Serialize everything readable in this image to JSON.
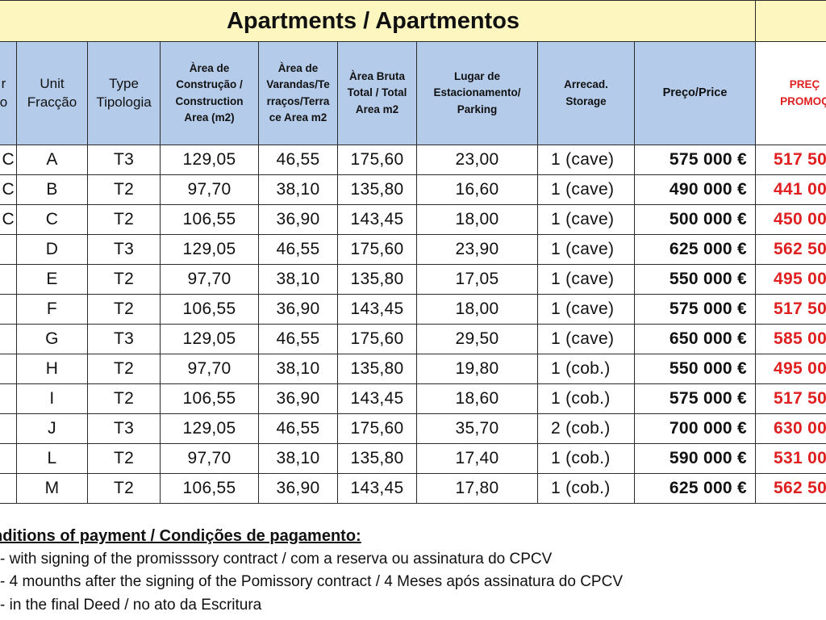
{
  "title": "Apartments / Apartmentos",
  "headers": {
    "col0": "r\no",
    "unit": "Unit\nFracção",
    "type": "Type\nTipologia",
    "construction_area": "Àrea de\nConstrução /\nConstruction\nArea (m2)",
    "balcony_area": "Àrea de\nVarandas/Te\nrraços/Terra\nce Area m2",
    "gross_area": "Àrea Bruta\nTotal / Total\nArea m2",
    "parking": "Lugar de\nEstacionamento/\nParking",
    "storage": "Arrecad.\nStorage",
    "price": "Preço/Price",
    "promo_price": "PREÇ\nPROMOÇ"
  },
  "rows": [
    {
      "col0": "C",
      "unit": "A",
      "type": "T3",
      "construction_area": "129,05",
      "balcony_area": "46,55",
      "gross_area": "175,60",
      "parking": "23,00",
      "storage": "1 (cave)",
      "price": "575 000 €",
      "promo_price": "517 50"
    },
    {
      "col0": "C",
      "unit": "B",
      "type": "T2",
      "construction_area": "97,70",
      "balcony_area": "38,10",
      "gross_area": "135,80",
      "parking": "16,60",
      "storage": "1 (cave)",
      "price": "490 000 €",
      "promo_price": "441 00"
    },
    {
      "col0": "C",
      "unit": "C",
      "type": "T2",
      "construction_area": "106,55",
      "balcony_area": "36,90",
      "gross_area": "143,45",
      "parking": "18,00",
      "storage": "1 (cave)",
      "price": "500 000 €",
      "promo_price": "450 00"
    },
    {
      "col0": "",
      "unit": "D",
      "type": "T3",
      "construction_area": "129,05",
      "balcony_area": "46,55",
      "gross_area": "175,60",
      "parking": "23,90",
      "storage": "1 (cave)",
      "price": "625 000 €",
      "promo_price": "562 50"
    },
    {
      "col0": "",
      "unit": "E",
      "type": "T2",
      "construction_area": "97,70",
      "balcony_area": "38,10",
      "gross_area": "135,80",
      "parking": "17,05",
      "storage": "1 (cave)",
      "price": "550 000 €",
      "promo_price": "495 00"
    },
    {
      "col0": "",
      "unit": "F",
      "type": "T2",
      "construction_area": "106,55",
      "balcony_area": "36,90",
      "gross_area": "143,45",
      "parking": "18,00",
      "storage": "1 (cave)",
      "price": "575 000 €",
      "promo_price": "517 50"
    },
    {
      "col0": "",
      "unit": "G",
      "type": "T3",
      "construction_area": "129,05",
      "balcony_area": "46,55",
      "gross_area": "175,60",
      "parking": "29,50",
      "storage": "1 (cave)",
      "price": "650 000 €",
      "promo_price": "585 00"
    },
    {
      "col0": "",
      "unit": "H",
      "type": "T2",
      "construction_area": "97,70",
      "balcony_area": "38,10",
      "gross_area": "135,80",
      "parking": "19,80",
      "storage": "1 (cob.)",
      "price": "550 000 €",
      "promo_price": "495 00"
    },
    {
      "col0": "",
      "unit": "I",
      "type": "T2",
      "construction_area": "106,55",
      "balcony_area": "36,90",
      "gross_area": "143,45",
      "parking": "18,60",
      "storage": "1 (cob.)",
      "price": "575 000 €",
      "promo_price": "517 50"
    },
    {
      "col0": "",
      "unit": "J",
      "type": "T3",
      "construction_area": "129,05",
      "balcony_area": "46,55",
      "gross_area": "175,60",
      "parking": "35,70",
      "storage": "2 (cob.)",
      "price": "700 000 €",
      "promo_price": "630 00"
    },
    {
      "col0": "",
      "unit": "L",
      "type": "T2",
      "construction_area": "97,70",
      "balcony_area": "38,10",
      "gross_area": "135,80",
      "parking": "17,40",
      "storage": "1 (cob.)",
      "price": "590 000 €",
      "promo_price": "531 00"
    },
    {
      "col0": "",
      "unit": "M",
      "type": "T2",
      "construction_area": "106,55",
      "balcony_area": "36,90",
      "gross_area": "143,45",
      "parking": "17,80",
      "storage": "1 (cob.)",
      "price": "625 000 €",
      "promo_price": "562 50"
    }
  ],
  "notes": {
    "title": "nditions of payment / Condições de pagamento:",
    "lines": [
      "- with signing of the promisssory contract / com a reserva ou assinatura do CPCV",
      "- 4 mounths after the signing of the Pomissory contract / 4 Meses após assinatura do CPCV",
      "- in the final Deed / no ato da  Escritura"
    ]
  },
  "colors": {
    "title_bg": "#fdf6bf",
    "header_bg": "#b4cbea",
    "promo_text": "#e02020",
    "border": "#2b2b2b"
  }
}
